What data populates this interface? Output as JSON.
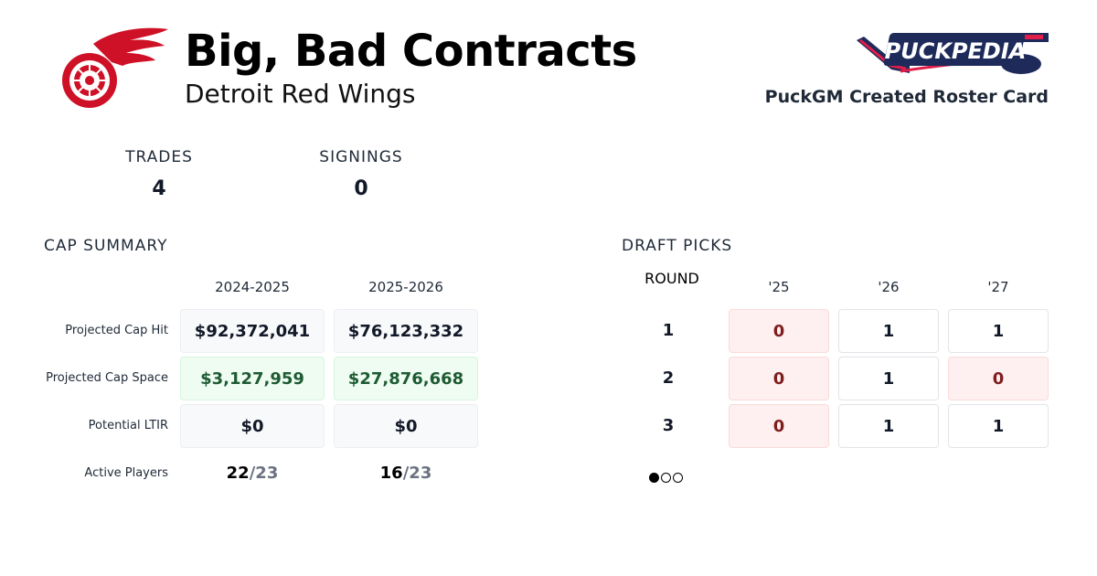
{
  "header": {
    "title": "Big, Bad Contracts",
    "team": "Detroit Red Wings",
    "credit": "PuckGM Created Roster Card",
    "brand_logo_text": "PuckPedia",
    "team_logo": "red-wings-winged-wheel"
  },
  "stats": {
    "trades_label": "TRADES",
    "trades": "4",
    "signings_label": "SIGNINGS",
    "signings": "0"
  },
  "cap": {
    "title": "CAP SUMMARY",
    "seasons": [
      "2024-2025",
      "2025-2026"
    ],
    "rows": [
      {
        "label": "Projected Cap Hit",
        "values": [
          "$92,372,041",
          "$76,123,332"
        ]
      },
      {
        "label": "Projected Cap Space",
        "values": [
          "$3,127,959",
          "$27,876,668"
        ]
      },
      {
        "label": "Potential LTIR",
        "values": [
          "$0",
          "$0"
        ]
      }
    ],
    "active": {
      "label": "Active Players",
      "values": [
        {
          "count": "22",
          "max": "/23"
        },
        {
          "count": "16",
          "max": "/23"
        }
      ]
    }
  },
  "draft": {
    "title": "DRAFT PICKS",
    "round_label": "ROUND",
    "years": [
      "'25",
      "'26",
      "'27"
    ],
    "rounds": [
      {
        "round": "1",
        "picks": [
          "0",
          "1",
          "1"
        ]
      },
      {
        "round": "2",
        "picks": [
          "0",
          "1",
          "0"
        ]
      },
      {
        "round": "3",
        "picks": [
          "0",
          "1",
          "1"
        ]
      }
    ],
    "pager": {
      "pages": 3,
      "active": 1
    }
  },
  "colors": {
    "red": "#ce1126",
    "green_text": "#1e5b32",
    "pink_text": "#7f1d1d"
  }
}
